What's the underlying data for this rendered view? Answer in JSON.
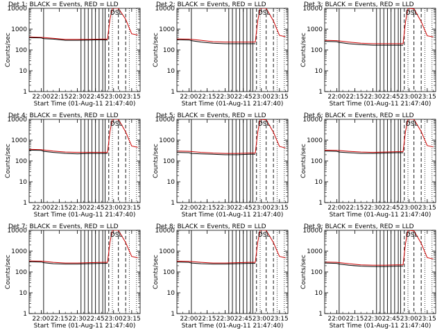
{
  "chart_data": {
    "type": "line",
    "y_scale": "log",
    "ylim": [
      1,
      10000
    ],
    "ylabel": "Counts/sec",
    "ytick_labels": [
      "1",
      "10",
      "100",
      "1000",
      "10000"
    ],
    "x_time_range": [
      "21:50",
      "23:22"
    ],
    "xtick_labels": [
      "22:00",
      "22:15",
      "22:30",
      "22:45",
      "23:00",
      "23:15"
    ],
    "xlabel": "Start Time (01-Aug-11 21:47:40)",
    "marker_text": "DSL",
    "series_names": [
      "BLACK = Events",
      "RED = LLD"
    ],
    "series_colors": {
      "events": "#000000",
      "lld": "#cc0000"
    },
    "solid_event_lines": [
      "22:02",
      "22:33",
      "22:36",
      "22:39",
      "22:42",
      "22:45",
      "22:48",
      "22:51",
      "22:53"
    ],
    "dashed_event_lines": [
      "22:56",
      "23:04",
      "23:10"
    ],
    "dotted_event_lines": [
      "22:59",
      "23:13",
      "23:19"
    ],
    "panels": [
      {
        "title": "Det  1: BLACK = Events, RED = LLD",
        "events": [
          [
            "21:50",
            390
          ],
          [
            "22:00",
            380
          ],
          [
            "22:02",
            350
          ],
          [
            "22:10",
            330
          ],
          [
            "22:20",
            290
          ],
          [
            "22:30",
            290
          ],
          [
            "22:40",
            300
          ],
          [
            "22:50",
            310
          ],
          [
            "22:55",
            300
          ]
        ],
        "lld": [
          [
            "21:50",
            420
          ],
          [
            "22:00",
            400
          ],
          [
            "22:10",
            360
          ],
          [
            "22:20",
            320
          ],
          [
            "22:30",
            320
          ],
          [
            "22:40",
            320
          ],
          [
            "22:50",
            330
          ],
          [
            "22:55",
            330
          ],
          [
            "22:57",
            3000
          ],
          [
            "22:59",
            12000
          ],
          [
            "23:04",
            11000
          ],
          [
            "23:10",
            3000
          ],
          [
            "23:15",
            600
          ],
          [
            "23:20",
            520
          ]
        ]
      },
      {
        "title": "Det  2: BLACK = Events, RED = LLD",
        "events": [
          [
            "21:50",
            310
          ],
          [
            "22:00",
            300
          ],
          [
            "22:02",
            280
          ],
          [
            "22:10",
            240
          ],
          [
            "22:20",
            210
          ],
          [
            "22:30",
            200
          ],
          [
            "22:40",
            200
          ],
          [
            "22:50",
            200
          ],
          [
            "22:55",
            200
          ]
        ],
        "lld": [
          [
            "21:50",
            340
          ],
          [
            "22:00",
            330
          ],
          [
            "22:10",
            290
          ],
          [
            "22:20",
            250
          ],
          [
            "22:30",
            240
          ],
          [
            "22:40",
            240
          ],
          [
            "22:50",
            240
          ],
          [
            "22:55",
            240
          ],
          [
            "22:57",
            2500
          ],
          [
            "22:59",
            11000
          ],
          [
            "23:04",
            10000
          ],
          [
            "23:10",
            2500
          ],
          [
            "23:15",
            500
          ],
          [
            "23:20",
            430
          ]
        ]
      },
      {
        "title": "Det  3: BLACK = Events, RED = LLD",
        "events": [
          [
            "21:50",
            260
          ],
          [
            "22:00",
            250
          ],
          [
            "22:02",
            230
          ],
          [
            "22:10",
            200
          ],
          [
            "22:20",
            180
          ],
          [
            "22:30",
            170
          ],
          [
            "22:40",
            170
          ],
          [
            "22:50",
            170
          ],
          [
            "22:55",
            170
          ]
        ],
        "lld": [
          [
            "21:50",
            290
          ],
          [
            "22:00",
            280
          ],
          [
            "22:10",
            240
          ],
          [
            "22:20",
            210
          ],
          [
            "22:30",
            200
          ],
          [
            "22:40",
            200
          ],
          [
            "22:50",
            200
          ],
          [
            "22:55",
            200
          ],
          [
            "22:57",
            2200
          ],
          [
            "22:59",
            10500
          ],
          [
            "23:04",
            9500
          ],
          [
            "23:10",
            2300
          ],
          [
            "23:15",
            480
          ],
          [
            "23:20",
            420
          ]
        ]
      },
      {
        "title": "Det  4: BLACK = Events, RED = LLD",
        "events": [
          [
            "21:50",
            330
          ],
          [
            "22:00",
            320
          ],
          [
            "22:02",
            290
          ],
          [
            "22:10",
            260
          ],
          [
            "22:20",
            230
          ],
          [
            "22:30",
            220
          ],
          [
            "22:40",
            230
          ],
          [
            "22:50",
            230
          ],
          [
            "22:55",
            230
          ]
        ],
        "lld": [
          [
            "21:50",
            360
          ],
          [
            "22:00",
            350
          ],
          [
            "22:10",
            300
          ],
          [
            "22:20",
            270
          ],
          [
            "22:30",
            260
          ],
          [
            "22:40",
            260
          ],
          [
            "22:50",
            260
          ],
          [
            "22:55",
            260
          ],
          [
            "22:57",
            2600
          ],
          [
            "22:59",
            11000
          ],
          [
            "23:04",
            10000
          ],
          [
            "23:10",
            2500
          ],
          [
            "23:15",
            520
          ],
          [
            "23:20",
            450
          ]
        ]
      },
      {
        "title": "Det  5: BLACK = Events, RED = LLD",
        "events": [
          [
            "21:50",
            260
          ],
          [
            "22:00",
            250
          ],
          [
            "22:02",
            230
          ],
          [
            "22:10",
            220
          ],
          [
            "22:20",
            210
          ],
          [
            "22:30",
            200
          ],
          [
            "22:40",
            200
          ],
          [
            "22:50",
            210
          ],
          [
            "22:55",
            210
          ]
        ],
        "lld": [
          [
            "21:50",
            300
          ],
          [
            "22:00",
            290
          ],
          [
            "22:10",
            260
          ],
          [
            "22:20",
            240
          ],
          [
            "22:30",
            230
          ],
          [
            "22:40",
            230
          ],
          [
            "22:50",
            240
          ],
          [
            "22:55",
            240
          ],
          [
            "22:57",
            2400
          ],
          [
            "22:59",
            10500
          ],
          [
            "23:04",
            9500
          ],
          [
            "23:10",
            2400
          ],
          [
            "23:15",
            500
          ],
          [
            "23:20",
            420
          ]
        ]
      },
      {
        "title": "Det  6: BLACK = Events, RED = LLD",
        "events": [
          [
            "21:50",
            300
          ],
          [
            "22:00",
            290
          ],
          [
            "22:02",
            270
          ],
          [
            "22:10",
            250
          ],
          [
            "22:20",
            230
          ],
          [
            "22:30",
            230
          ],
          [
            "22:40",
            240
          ],
          [
            "22:50",
            250
          ],
          [
            "22:55",
            250
          ]
        ],
        "lld": [
          [
            "21:50",
            330
          ],
          [
            "22:00",
            320
          ],
          [
            "22:10",
            290
          ],
          [
            "22:20",
            270
          ],
          [
            "22:30",
            260
          ],
          [
            "22:40",
            270
          ],
          [
            "22:50",
            280
          ],
          [
            "22:55",
            280
          ],
          [
            "22:57",
            2600
          ],
          [
            "22:59",
            11000
          ],
          [
            "23:04",
            10000
          ],
          [
            "23:10",
            2600
          ],
          [
            "23:15",
            550
          ],
          [
            "23:20",
            470
          ]
        ]
      },
      {
        "title": "Det  7: BLACK = Events, RED = LLD",
        "events": [
          [
            "21:50",
            310
          ],
          [
            "22:00",
            300
          ],
          [
            "22:02",
            280
          ],
          [
            "22:10",
            250
          ],
          [
            "22:20",
            240
          ],
          [
            "22:30",
            240
          ],
          [
            "22:40",
            250
          ],
          [
            "22:50",
            260
          ],
          [
            "22:55",
            260
          ]
        ],
        "lld": [
          [
            "21:50",
            340
          ],
          [
            "22:00",
            330
          ],
          [
            "22:10",
            290
          ],
          [
            "22:20",
            270
          ],
          [
            "22:30",
            270
          ],
          [
            "22:40",
            280
          ],
          [
            "22:50",
            290
          ],
          [
            "22:55",
            290
          ],
          [
            "22:57",
            2700
          ],
          [
            "22:59",
            11500
          ],
          [
            "23:04",
            10500
          ],
          [
            "23:10",
            2600
          ],
          [
            "23:15",
            560
          ],
          [
            "23:20",
            480
          ]
        ]
      },
      {
        "title": "Det  8: BLACK = Events, RED = LLD",
        "events": [
          [
            "21:50",
            300
          ],
          [
            "22:00",
            290
          ],
          [
            "22:02",
            270
          ],
          [
            "22:10",
            250
          ],
          [
            "22:20",
            240
          ],
          [
            "22:30",
            240
          ],
          [
            "22:40",
            250
          ],
          [
            "22:50",
            260
          ],
          [
            "22:55",
            260
          ]
        ],
        "lld": [
          [
            "21:50",
            330
          ],
          [
            "22:00",
            320
          ],
          [
            "22:10",
            290
          ],
          [
            "22:20",
            270
          ],
          [
            "22:30",
            270
          ],
          [
            "22:40",
            280
          ],
          [
            "22:50",
            290
          ],
          [
            "22:55",
            290
          ],
          [
            "22:57",
            2700
          ],
          [
            "22:59",
            11500
          ],
          [
            "23:04",
            10500
          ],
          [
            "23:10",
            2600
          ],
          [
            "23:15",
            560
          ],
          [
            "23:20",
            480
          ]
        ]
      },
      {
        "title": "Det  9: BLACK = Events, RED = LLD",
        "events": [
          [
            "21:50",
            270
          ],
          [
            "22:00",
            260
          ],
          [
            "22:02",
            240
          ],
          [
            "22:10",
            210
          ],
          [
            "22:20",
            190
          ],
          [
            "22:30",
            180
          ],
          [
            "22:40",
            180
          ],
          [
            "22:50",
            190
          ],
          [
            "22:55",
            190
          ]
        ],
        "lld": [
          [
            "21:50",
            300
          ],
          [
            "22:00",
            290
          ],
          [
            "22:10",
            250
          ],
          [
            "22:20",
            220
          ],
          [
            "22:30",
            210
          ],
          [
            "22:40",
            210
          ],
          [
            "22:50",
            220
          ],
          [
            "22:55",
            220
          ],
          [
            "22:57",
            2300
          ],
          [
            "22:59",
            10500
          ],
          [
            "23:04",
            9500
          ],
          [
            "23:10",
            2400
          ],
          [
            "23:15",
            490
          ],
          [
            "23:20",
            420
          ]
        ]
      }
    ]
  }
}
